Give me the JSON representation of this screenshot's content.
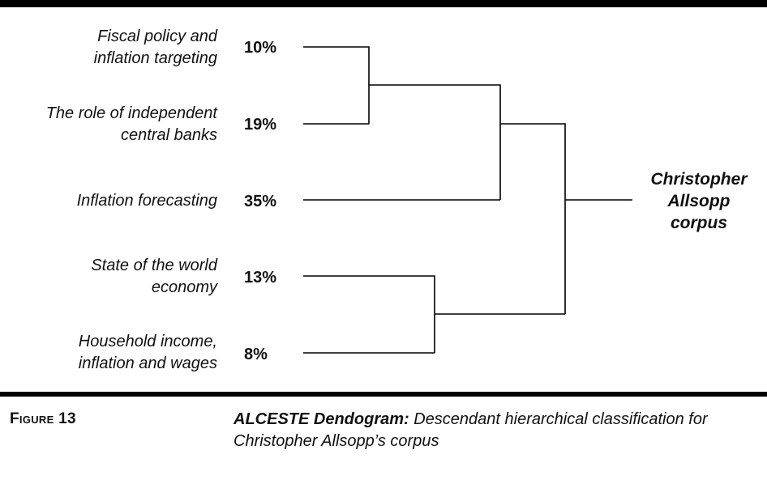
{
  "leaves": [
    {
      "lines": [
        "Fiscal policy and",
        "inflation targeting"
      ],
      "pct": "10%"
    },
    {
      "lines": [
        "The role of independent",
        "central banks"
      ],
      "pct": "19%"
    },
    {
      "lines": [
        "Inflation forecasting"
      ],
      "pct": "35%"
    },
    {
      "lines": [
        "State of the world",
        "economy"
      ],
      "pct": "13%"
    },
    {
      "lines": [
        "Household income,",
        "inflation and wages"
      ],
      "pct": "8%"
    }
  ],
  "root": {
    "lines": [
      "Christopher",
      "Allsopp",
      "corpus"
    ]
  },
  "figure": {
    "number": "Figure 13",
    "caption_bold": "ALCESTE Dendogram:",
    "caption_text": " Descendant hierarchical classification for Christopher Allsopp’s corpus"
  },
  "chart_data": {
    "type": "dendrogram",
    "leaves": [
      "Fiscal policy and inflation targeting",
      "The role of independent central banks",
      "Inflation forecasting",
      "State of the world economy",
      "Household income, inflation and wages"
    ],
    "percentages": [
      10,
      19,
      35,
      13,
      8
    ],
    "merges": [
      {
        "children": [
          "Fiscal policy and inflation targeting",
          "The role of independent central banks"
        ],
        "level": 1
      },
      {
        "children": [
          "merge-1",
          "Inflation forecasting"
        ],
        "level": 2
      },
      {
        "children": [
          "State of the world economy",
          "Household income, inflation and wages"
        ],
        "level": 2
      },
      {
        "children": [
          "merge-2",
          "merge-3"
        ],
        "level": 3
      }
    ],
    "root": "Christopher Allsopp corpus"
  }
}
